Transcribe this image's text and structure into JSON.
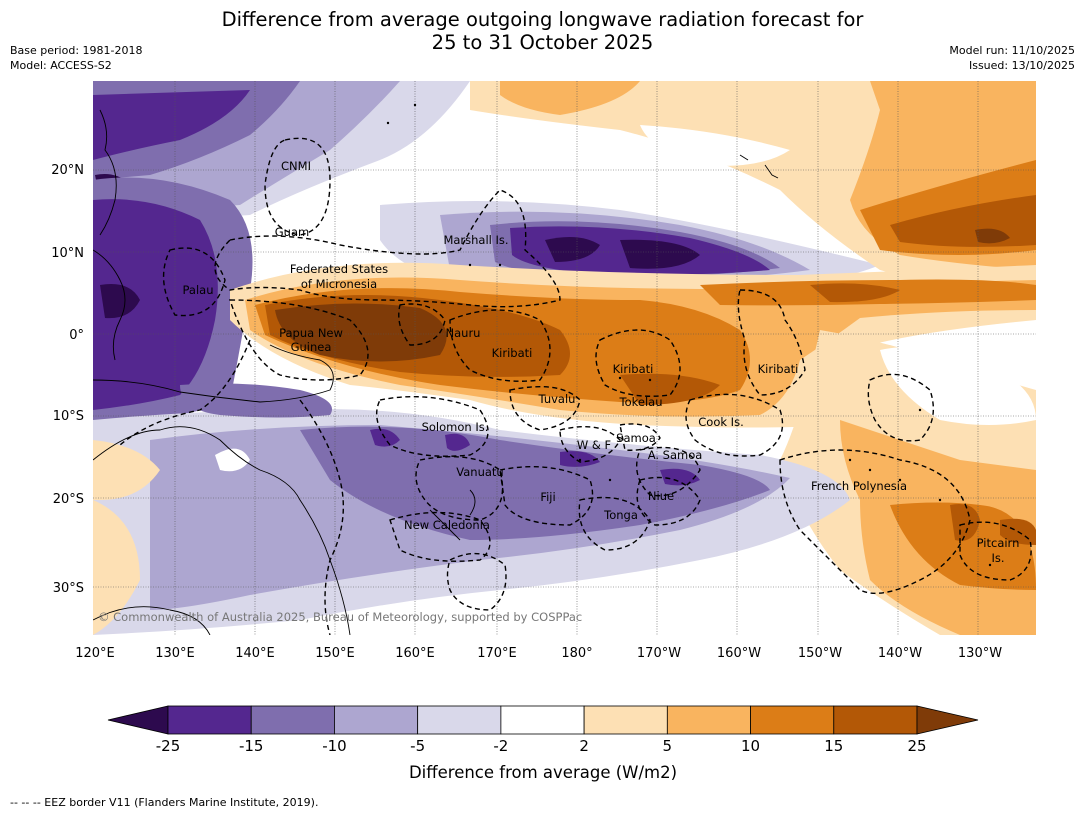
{
  "title": {
    "line1": "Difference from average outgoing longwave radiation forecast for",
    "line2": "25 to 31 October 2025"
  },
  "meta": {
    "base_period": "Base period: 1981-2018",
    "model": "Model: ACCESS-S2",
    "model_run": "Model run: 11/10/2025",
    "issued": "Issued: 13/10/2025"
  },
  "map": {
    "lat_labels": [
      "20°N",
      "10°N",
      "0°",
      "10°S",
      "20°S",
      "30°S"
    ],
    "lon_labels": [
      "120°E",
      "130°E",
      "140°E",
      "150°E",
      "160°E",
      "170°E",
      "180°",
      "170°W",
      "160°W",
      "150°W",
      "140°W",
      "130°W"
    ],
    "regions": [
      "CNMI",
      "Guam",
      "Marshall Is.",
      "Federated States",
      "of Micronesia",
      "Palau",
      "Papua New",
      "Guinea",
      "Nauru",
      "Kiribati",
      "Kiribati",
      "Kiribati",
      "Tuvalu",
      "Tokelau",
      "Cook Is.",
      "Solomon Is.",
      "Samoa",
      "W & F",
      "A. Samoa",
      "Vanuatu",
      "Fiji",
      "Niue",
      "Tonga",
      "French Polynesia",
      "New Caledonia",
      "Pitcairn",
      "Is."
    ],
    "copyright": "© Commonwealth of Australia 2025, Bureau of Meteorology, supported by COSPPac"
  },
  "colorbar": {
    "ticks": [
      "-25",
      "-15",
      "-10",
      "-5",
      "-2",
      "2",
      "5",
      "10",
      "15",
      "25"
    ],
    "colors": [
      "#2d0a4e",
      "#54278f",
      "#7f6eae",
      "#ada6d0",
      "#d9d8ea",
      "#ffffff",
      "#fde0b4",
      "#f9b45f",
      "#dc7d17",
      "#b35806",
      "#7f3b08"
    ],
    "title": "Difference from average (W/m2)"
  },
  "footer": "--  --  -- EEZ border V11 (Flanders Marine Institute, 2019)."
}
